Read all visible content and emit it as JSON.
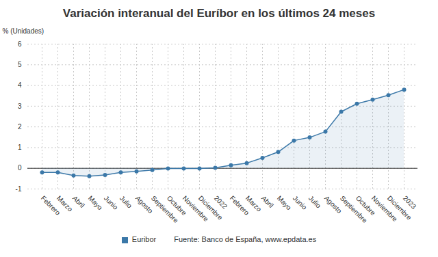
{
  "chart_data": {
    "type": "line",
    "title": "Variación interanual del Euríbor en los últimos 24 meses",
    "y_label": "% (Unidades)",
    "source": "Fuente: Banco de España, www.epdata.es",
    "categories": [
      "Febrero",
      "Marzo",
      "Abril",
      "Mayo",
      "Junio",
      "Julio",
      "Agosto",
      "Septiembre",
      "Octubre",
      "Noviembre",
      "Diciembre",
      "2022",
      "Febrero",
      "Marzo",
      "Abril",
      "Mayo",
      "Junio",
      "Julio",
      "Agosto",
      "Septiembre",
      "Octubre",
      "Noviembre",
      "Diciembre",
      "2023"
    ],
    "series": [
      {
        "name": "Euribor",
        "color": "#3b78a8",
        "marker": "circle",
        "values": [
          -0.2,
          -0.2,
          -0.35,
          -0.38,
          -0.32,
          -0.2,
          -0.15,
          -0.08,
          -0.01,
          -0.01,
          -0.01,
          0.02,
          0.15,
          0.25,
          0.5,
          0.79,
          1.34,
          1.49,
          1.77,
          2.73,
          3.12,
          3.32,
          3.53,
          3.8
        ]
      }
    ],
    "ylim": [
      -1,
      6
    ],
    "yticks": [
      -1,
      0,
      1,
      2,
      3,
      4,
      5,
      6
    ],
    "grid": true
  }
}
